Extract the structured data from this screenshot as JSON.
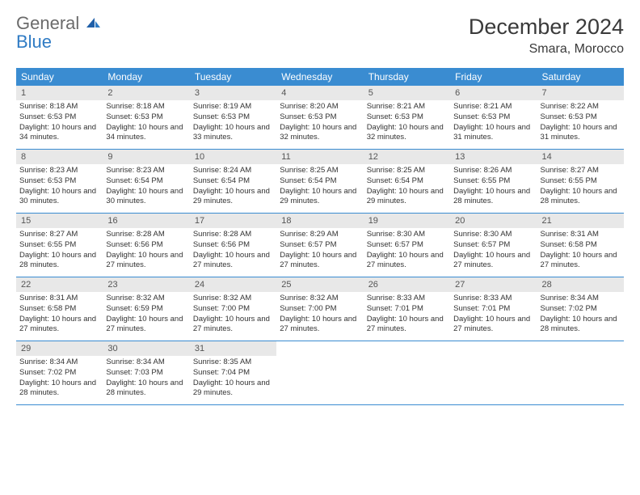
{
  "brand": {
    "word1": "General",
    "word2": "Blue"
  },
  "title": "December 2024",
  "location": "Smara, Morocco",
  "colors": {
    "header_bg": "#3a8cd1",
    "header_text": "#ffffff",
    "daynum_bg": "#e8e8e8",
    "daynum_text": "#555555",
    "rule": "#3a8cd1",
    "body_text": "#333333",
    "logo_gray": "#6b6b6b",
    "logo_blue": "#2f7bc4"
  },
  "day_labels": [
    "Sunday",
    "Monday",
    "Tuesday",
    "Wednesday",
    "Thursday",
    "Friday",
    "Saturday"
  ],
  "days": [
    {
      "n": 1,
      "sr": "8:18 AM",
      "ss": "6:53 PM",
      "dl": "10 hours and 34 minutes."
    },
    {
      "n": 2,
      "sr": "8:18 AM",
      "ss": "6:53 PM",
      "dl": "10 hours and 34 minutes."
    },
    {
      "n": 3,
      "sr": "8:19 AM",
      "ss": "6:53 PM",
      "dl": "10 hours and 33 minutes."
    },
    {
      "n": 4,
      "sr": "8:20 AM",
      "ss": "6:53 PM",
      "dl": "10 hours and 32 minutes."
    },
    {
      "n": 5,
      "sr": "8:21 AM",
      "ss": "6:53 PM",
      "dl": "10 hours and 32 minutes."
    },
    {
      "n": 6,
      "sr": "8:21 AM",
      "ss": "6:53 PM",
      "dl": "10 hours and 31 minutes."
    },
    {
      "n": 7,
      "sr": "8:22 AM",
      "ss": "6:53 PM",
      "dl": "10 hours and 31 minutes."
    },
    {
      "n": 8,
      "sr": "8:23 AM",
      "ss": "6:53 PM",
      "dl": "10 hours and 30 minutes."
    },
    {
      "n": 9,
      "sr": "8:23 AM",
      "ss": "6:54 PM",
      "dl": "10 hours and 30 minutes."
    },
    {
      "n": 10,
      "sr": "8:24 AM",
      "ss": "6:54 PM",
      "dl": "10 hours and 29 minutes."
    },
    {
      "n": 11,
      "sr": "8:25 AM",
      "ss": "6:54 PM",
      "dl": "10 hours and 29 minutes."
    },
    {
      "n": 12,
      "sr": "8:25 AM",
      "ss": "6:54 PM",
      "dl": "10 hours and 29 minutes."
    },
    {
      "n": 13,
      "sr": "8:26 AM",
      "ss": "6:55 PM",
      "dl": "10 hours and 28 minutes."
    },
    {
      "n": 14,
      "sr": "8:27 AM",
      "ss": "6:55 PM",
      "dl": "10 hours and 28 minutes."
    },
    {
      "n": 15,
      "sr": "8:27 AM",
      "ss": "6:55 PM",
      "dl": "10 hours and 28 minutes."
    },
    {
      "n": 16,
      "sr": "8:28 AM",
      "ss": "6:56 PM",
      "dl": "10 hours and 27 minutes."
    },
    {
      "n": 17,
      "sr": "8:28 AM",
      "ss": "6:56 PM",
      "dl": "10 hours and 27 minutes."
    },
    {
      "n": 18,
      "sr": "8:29 AM",
      "ss": "6:57 PM",
      "dl": "10 hours and 27 minutes."
    },
    {
      "n": 19,
      "sr": "8:30 AM",
      "ss": "6:57 PM",
      "dl": "10 hours and 27 minutes."
    },
    {
      "n": 20,
      "sr": "8:30 AM",
      "ss": "6:57 PM",
      "dl": "10 hours and 27 minutes."
    },
    {
      "n": 21,
      "sr": "8:31 AM",
      "ss": "6:58 PM",
      "dl": "10 hours and 27 minutes."
    },
    {
      "n": 22,
      "sr": "8:31 AM",
      "ss": "6:58 PM",
      "dl": "10 hours and 27 minutes."
    },
    {
      "n": 23,
      "sr": "8:32 AM",
      "ss": "6:59 PM",
      "dl": "10 hours and 27 minutes."
    },
    {
      "n": 24,
      "sr": "8:32 AM",
      "ss": "7:00 PM",
      "dl": "10 hours and 27 minutes."
    },
    {
      "n": 25,
      "sr": "8:32 AM",
      "ss": "7:00 PM",
      "dl": "10 hours and 27 minutes."
    },
    {
      "n": 26,
      "sr": "8:33 AM",
      "ss": "7:01 PM",
      "dl": "10 hours and 27 minutes."
    },
    {
      "n": 27,
      "sr": "8:33 AM",
      "ss": "7:01 PM",
      "dl": "10 hours and 27 minutes."
    },
    {
      "n": 28,
      "sr": "8:34 AM",
      "ss": "7:02 PM",
      "dl": "10 hours and 28 minutes."
    },
    {
      "n": 29,
      "sr": "8:34 AM",
      "ss": "7:02 PM",
      "dl": "10 hours and 28 minutes."
    },
    {
      "n": 30,
      "sr": "8:34 AM",
      "ss": "7:03 PM",
      "dl": "10 hours and 28 minutes."
    },
    {
      "n": 31,
      "sr": "8:35 AM",
      "ss": "7:04 PM",
      "dl": "10 hours and 29 minutes."
    }
  ],
  "labels": {
    "sunrise": "Sunrise:",
    "sunset": "Sunset:",
    "daylight": "Daylight:"
  },
  "layout": {
    "start_weekday": 0,
    "cells_per_row": 7,
    "total_rows": 5
  }
}
